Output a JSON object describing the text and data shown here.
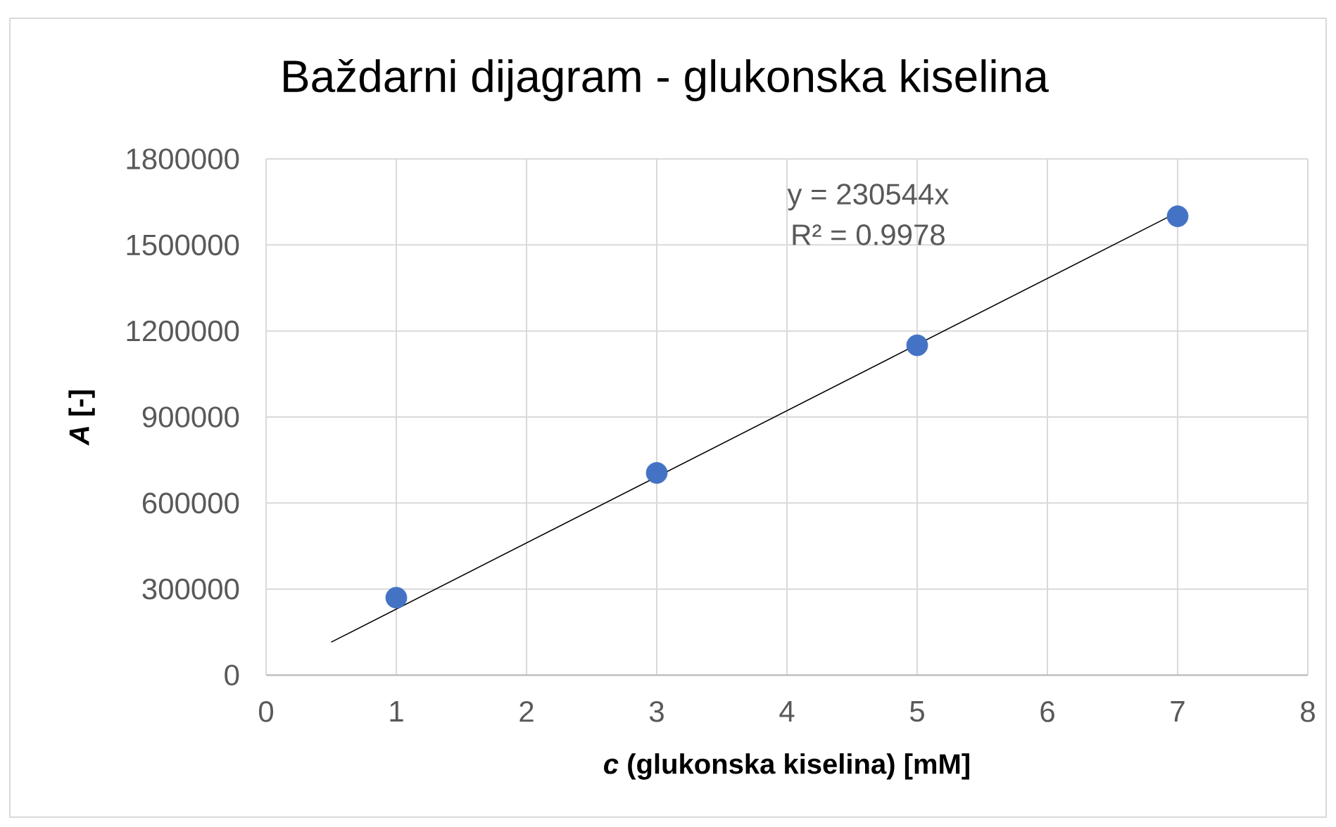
{
  "chart_data": {
    "type": "scatter",
    "title": "Baždarni dijagram - glukonska kiselina",
    "xlabel": "*c* (glukonska kiselina) [mM]",
    "ylabel": "*A* [-]",
    "xlim": [
      0,
      8
    ],
    "ylim": [
      0,
      1800000
    ],
    "xticks": [
      0,
      1,
      2,
      3,
      4,
      5,
      6,
      7,
      8
    ],
    "yticks": [
      0,
      300000,
      600000,
      900000,
      1200000,
      1500000,
      1800000
    ],
    "grid": true,
    "series": [
      {
        "x": [
          1,
          3,
          5,
          7
        ],
        "values": [
          270000,
          705000,
          1150000,
          1600000
        ],
        "color": "#4472c4",
        "marker": "circle"
      },
      {
        "type": "line",
        "x": [
          0.5,
          7
        ],
        "values": [
          115000,
          1614000
        ],
        "color": "#000000",
        "marker": "none",
        "line_style": "solid"
      }
    ],
    "annotations": [
      "y = 230544x",
      "R² = 0.9978"
    ]
  }
}
